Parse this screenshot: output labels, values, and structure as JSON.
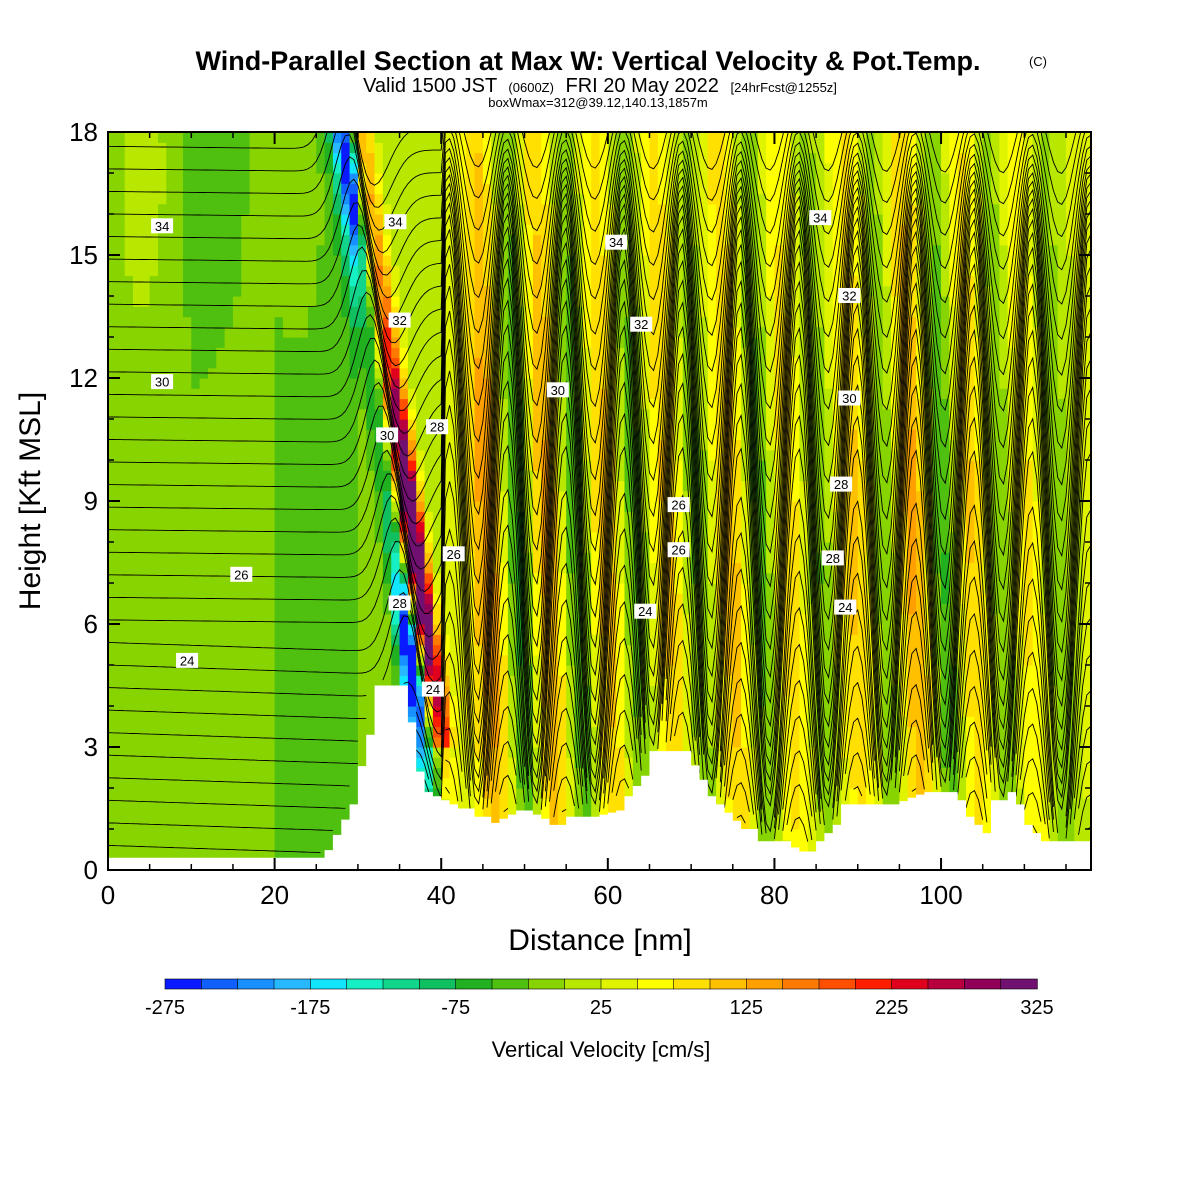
{
  "chart_data": {
    "type": "heatmap",
    "title": "Wind-Parallel Section at Max W: Vertical Velocity & Pot.Temp.",
    "title_mark": "(C)",
    "subtitle": {
      "valid": "Valid 1500 JST",
      "utc": "(0600Z)",
      "date": "FRI 20 May 2022",
      "forecast": "[24hrFcst@1255z]"
    },
    "subtitle2": "boxWmax=312@39.12,140.13,1857m",
    "xlabel": "Distance [nm]",
    "ylabel": "Height [Kft MSL]",
    "xlim": [
      0,
      118
    ],
    "ylim": [
      0,
      18
    ],
    "xticks": [
      0,
      20,
      40,
      60,
      80,
      100
    ],
    "xtick_labels": [
      "0",
      "20",
      "40",
      "60",
      "80",
      "100"
    ],
    "yticks": [
      0,
      3,
      6,
      9,
      12,
      15,
      18
    ],
    "ytick_labels": [
      "0",
      "3",
      "6",
      "9",
      "12",
      "15",
      "18"
    ],
    "colorbar": {
      "title": "Vertical Velocity [cm/s]",
      "tick_labels": [
        "-275",
        "-175",
        "-75",
        "25",
        "125",
        "225",
        "325"
      ],
      "colors": [
        "#0a1aff",
        "#1060ff",
        "#1890ff",
        "#28b8ff",
        "#12e6ff",
        "#16eec4",
        "#12d48a",
        "#10c060",
        "#20b020",
        "#50c010",
        "#88d400",
        "#b8e800",
        "#e0f400",
        "#ffff00",
        "#ffe000",
        "#ffc000",
        "#ffa000",
        "#ff7a00",
        "#ff5000",
        "#ff1e00",
        "#e0001e",
        "#b80040",
        "#900058",
        "#701070"
      ]
    },
    "contour_labels": [
      {
        "text": "34",
        "x": 6.5,
        "y": 15.7
      },
      {
        "text": "34",
        "x": 34.5,
        "y": 15.8
      },
      {
        "text": "34",
        "x": 61,
        "y": 15.3
      },
      {
        "text": "34",
        "x": 85.5,
        "y": 15.9
      },
      {
        "text": "32",
        "x": 35,
        "y": 13.4
      },
      {
        "text": "32",
        "x": 64,
        "y": 13.3
      },
      {
        "text": "32",
        "x": 89,
        "y": 14.0
      },
      {
        "text": "30",
        "x": 6.5,
        "y": 11.9
      },
      {
        "text": "30",
        "x": 33.5,
        "y": 10.6
      },
      {
        "text": "30",
        "x": 54,
        "y": 11.7
      },
      {
        "text": "30",
        "x": 89,
        "y": 11.5
      },
      {
        "text": "28",
        "x": 39.5,
        "y": 10.8
      },
      {
        "text": "28",
        "x": 88,
        "y": 9.4
      },
      {
        "text": "28",
        "x": 35,
        "y": 6.5
      },
      {
        "text": "28",
        "x": 87,
        "y": 7.6
      },
      {
        "text": "26",
        "x": 68.5,
        "y": 8.9
      },
      {
        "text": "26",
        "x": 68.5,
        "y": 7.8
      },
      {
        "text": "26",
        "x": 41.5,
        "y": 7.7
      },
      {
        "text": "26",
        "x": 16,
        "y": 7.2
      },
      {
        "text": "24",
        "x": 9.5,
        "y": 5.1
      },
      {
        "text": "24",
        "x": 64.5,
        "y": 6.3
      },
      {
        "text": "24",
        "x": 88.5,
        "y": 6.4
      },
      {
        "text": "24",
        "x": 39,
        "y": 4.4
      }
    ]
  }
}
